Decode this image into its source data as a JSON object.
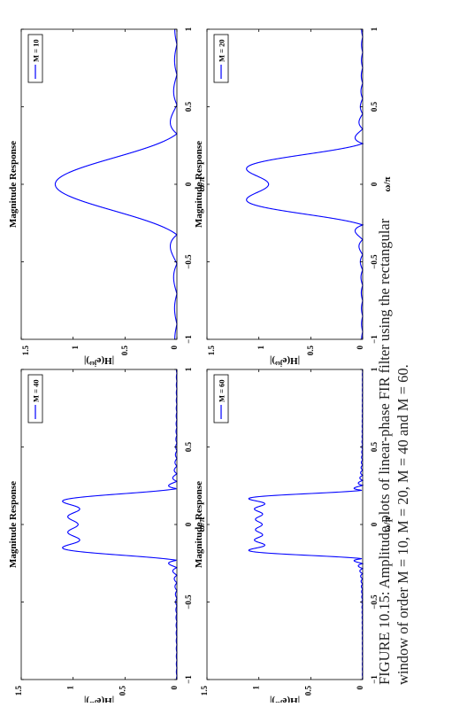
{
  "caption": {
    "line1": "FIGURE 10.15: Amplitude plots of linear-phase FIR filter using the rectangular",
    "line2": "window of order M = 10, M = 20, M = 40 and M = 60."
  },
  "style": {
    "curve_color": "#0000ff",
    "axis_color": "#000000"
  },
  "chart_data": [
    {
      "type": "line",
      "title": "Magnitude Response",
      "xlabel": "ω/π",
      "ylabel": "|H(e^{jω})|",
      "xlim": [
        -1,
        1
      ],
      "ylim": [
        0,
        1.5
      ],
      "xticks": [
        "−1",
        "−0.5",
        "0",
        "0.5",
        "1"
      ],
      "yticks": [
        "0",
        "0.5",
        "1",
        "1.5"
      ],
      "grid": false,
      "legend_position": "top-right",
      "series": [
        {
          "name": "M = 10",
          "order": 10
        }
      ]
    },
    {
      "type": "line",
      "title": "Magnitude Response",
      "xlabel": "ω/π",
      "ylabel": "|H(e^{jω})|",
      "xlim": [
        -1,
        1
      ],
      "ylim": [
        0,
        1.5
      ],
      "xticks": [
        "−1",
        "−0.5",
        "0",
        "0.5",
        "1"
      ],
      "yticks": [
        "0",
        "0.5",
        "1",
        "1.5"
      ],
      "grid": false,
      "legend_position": "top-right",
      "series": [
        {
          "name": "M = 20",
          "order": 20
        }
      ]
    },
    {
      "type": "line",
      "title": "Magnitude Response",
      "xlabel": "ω/π",
      "ylabel": "|H(e^{jω})|",
      "xlim": [
        -1,
        1
      ],
      "ylim": [
        0,
        1.5
      ],
      "xticks": [
        "−1",
        "−0.5",
        "0",
        "0.5",
        "1"
      ],
      "yticks": [
        "0",
        "0.5",
        "1",
        "1.5"
      ],
      "grid": false,
      "legend_position": "top-right",
      "series": [
        {
          "name": "M = 40",
          "order": 40
        }
      ]
    },
    {
      "type": "line",
      "title": "Magnitude Response",
      "xlabel": "ω/π",
      "ylabel": "|H(e^{jω})|",
      "xlim": [
        -1,
        1
      ],
      "ylim": [
        0,
        1.5
      ],
      "xticks": [
        "−1",
        "−0.5",
        "0",
        "0.5",
        "1"
      ],
      "yticks": [
        "0",
        "0.5",
        "1",
        "1.5"
      ],
      "grid": false,
      "legend_position": "top-right",
      "series": [
        {
          "name": "M = 60",
          "order": 60
        }
      ]
    }
  ]
}
